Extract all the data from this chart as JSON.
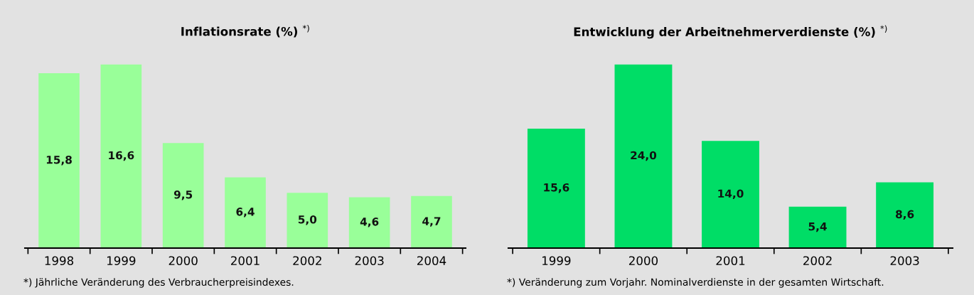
{
  "chart_data": [
    {
      "type": "bar",
      "title": "Inflationsrate (%) $^{*)}$",
      "categories": [
        "1998",
        "1999",
        "2000",
        "2001",
        "2002",
        "2003",
        "2004"
      ],
      "series": [
        {
          "color": "#99ff99",
          "values": [
            15.8,
            16.6,
            9.5,
            6.4,
            5.0,
            4.6,
            4.7
          ],
          "value_labels": [
            "15,8",
            "16,6",
            "9,5",
            "6,4",
            "5,0",
            "4,6",
            "4,7"
          ]
        }
      ],
      "annotations": [
        "*) Jährliche Veränderung des Verbraucherpreisindexes."
      ],
      "tick_labels": "x"
    },
    {
      "type": "bar",
      "title": "Entwicklung der Arbeitnehmerverdienste (%) $^{*)}$",
      "categories": [
        "1999",
        "2000",
        "2001",
        "2002",
        "2003"
      ],
      "series": [
        {
          "color": "#00dd66",
          "values": [
            15.6,
            24.0,
            14.0,
            5.4,
            8.6
          ],
          "value_labels": [
            "15,6",
            "24,0",
            "14,0",
            "5,4",
            "8,6"
          ]
        }
      ],
      "annotations": [
        "*) Veränderung zum Vorjahr. Nominalverdienste in der gesamten Wirtschaft."
      ],
      "tick_labels": "x"
    }
  ]
}
